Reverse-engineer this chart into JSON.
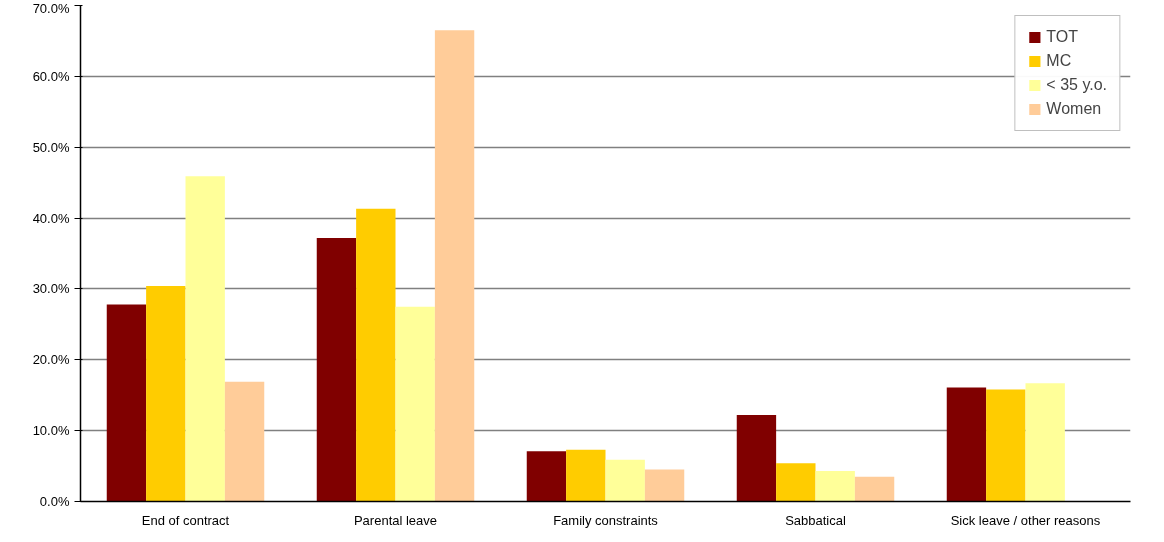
{
  "chart_data": {
    "type": "bar",
    "categories": [
      "End of contract",
      "Parental leave",
      "Family constraints",
      "Sabbatical",
      "Sick leave / other reasons"
    ],
    "series": [
      {
        "name": "TOT",
        "color": "#800000",
        "values": [
          27.8,
          37.2,
          7.1,
          12.2,
          16.1
        ]
      },
      {
        "name": "MC",
        "color": "#ffcc00",
        "values": [
          30.4,
          41.3,
          7.3,
          5.4,
          15.8
        ]
      },
      {
        "name": "< 35 y.o.",
        "color": "#ffff99",
        "values": [
          45.9,
          27.5,
          5.9,
          4.3,
          16.7
        ]
      },
      {
        "name": "Women",
        "color": "#ffcc99",
        "values": [
          16.9,
          66.5,
          4.5,
          3.5,
          null
        ]
      }
    ],
    "ylim": [
      0,
      70
    ],
    "yticks": [
      {
        "value": 0,
        "label": "0.0%"
      },
      {
        "value": 10,
        "label": "10.0%"
      },
      {
        "value": 20,
        "label": "20.0%"
      },
      {
        "value": 30,
        "label": "30.0%"
      },
      {
        "value": 40,
        "label": "40.0%"
      },
      {
        "value": 50,
        "label": "50.0%"
      },
      {
        "value": 60,
        "label": "60.0%"
      },
      {
        "value": 70,
        "label": "70.0%"
      }
    ],
    "grid": "y",
    "legend": "top right"
  }
}
